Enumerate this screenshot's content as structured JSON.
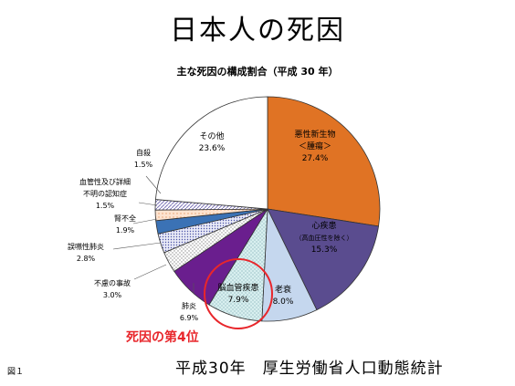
{
  "slide_title": "日本人の死因",
  "fig_label": "図１",
  "source": "平成30年　厚生労働省人口動態統計",
  "annotation": "死因の第4位",
  "colors": {
    "annotation": "#e8262b",
    "cancer": "#e07324",
    "heart": "#5a4c8f",
    "senility": "#c5d7ee",
    "cerebro": "#d8efef",
    "pneumonia": "#6a1e8e",
    "accident": "#ffffff",
    "aspiration": "#bfc3e6",
    "kidney": "#3b72b5",
    "vascular": "#f6c7a6",
    "suicide": "#d7d3ee",
    "other": "#ffffff"
  },
  "chart_data": {
    "type": "pie",
    "title": "主な死因の構成割合（平成 30 年）",
    "unit": "%",
    "slices": [
      {
        "lines": [
          "悪性新生物",
          "＜腫瘍＞"
        ],
        "value": 27.4,
        "value_label": "27.4%",
        "color_key": "cancer"
      },
      {
        "lines": [
          "心疾患",
          "（高血圧性を除く）"
        ],
        "value": 15.3,
        "value_label": "15.3%",
        "color_key": "heart"
      },
      {
        "lines": [
          "老衰"
        ],
        "value": 8.0,
        "value_label": "8.0%",
        "color_key": "senility"
      },
      {
        "lines": [
          "脳血管疾患"
        ],
        "value": 7.9,
        "value_label": "7.9%",
        "color_key": "cerebro"
      },
      {
        "lines": [
          "肺炎"
        ],
        "value": 6.9,
        "value_label": "6.9%",
        "color_key": "pneumonia"
      },
      {
        "lines": [
          "不慮の事故"
        ],
        "value": 3.0,
        "value_label": "3.0%",
        "color_key": "accident"
      },
      {
        "lines": [
          "誤嚥性肺炎"
        ],
        "value": 2.8,
        "value_label": "2.8%",
        "color_key": "aspiration"
      },
      {
        "lines": [
          "腎不全"
        ],
        "value": 1.9,
        "value_label": "1.9%",
        "color_key": "kidney"
      },
      {
        "lines": [
          "血管性及び詳細",
          "不明の認知症"
        ],
        "value": 1.5,
        "value_label": "1.5%",
        "color_key": "vascular"
      },
      {
        "lines": [
          "自殺"
        ],
        "value": 1.5,
        "value_label": "1.5%",
        "color_key": "suicide"
      },
      {
        "lines": [
          "その他"
        ],
        "value": 23.6,
        "value_label": "23.6%",
        "color_key": "other"
      }
    ],
    "highlighted_slice": "脳血管疾患"
  }
}
